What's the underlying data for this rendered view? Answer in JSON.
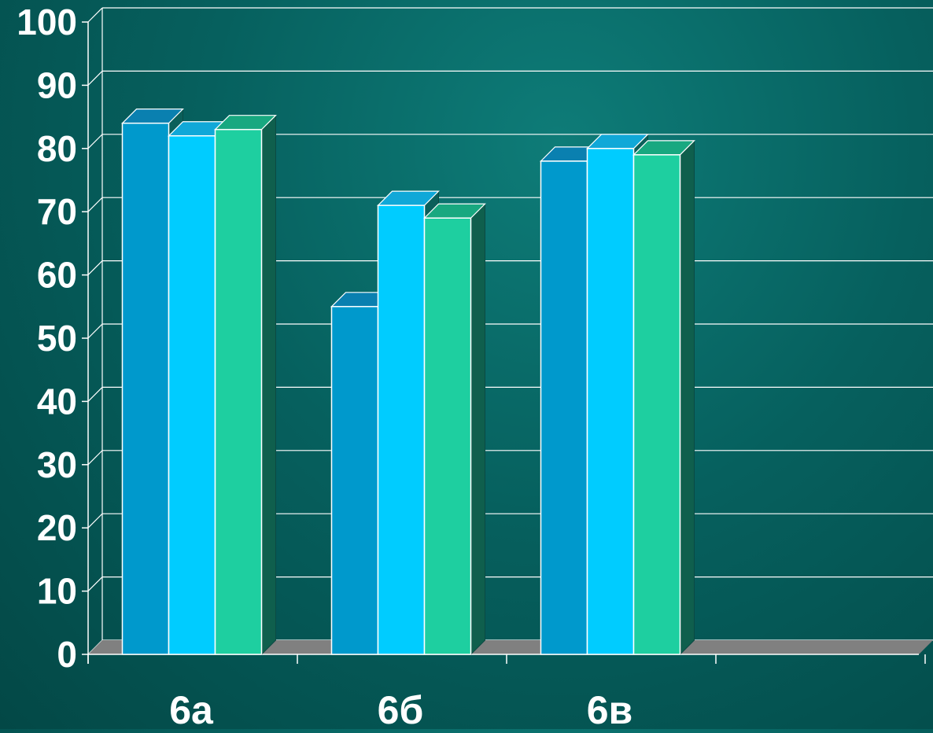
{
  "chart_data": {
    "type": "bar",
    "style": "3d-clustered",
    "categories": [
      "6а",
      "6б",
      "6в"
    ],
    "series": [
      {
        "values": [
          84,
          55,
          78
        ]
      },
      {
        "values": [
          82,
          71,
          80
        ]
      },
      {
        "values": [
          83,
          69,
          79
        ]
      }
    ],
    "ylim": [
      0,
      100
    ],
    "yticks": [
      "0",
      "10",
      "20",
      "30",
      "40",
      "50",
      "60",
      "70",
      "80",
      "90",
      "100"
    ],
    "grid": true,
    "legend": "none"
  },
  "colors": {
    "series_front": [
      "#0099cc",
      "#00ccff",
      "#1ecfa0"
    ],
    "series_top": [
      "#0a80b0",
      "#10a8d8",
      "#18a880"
    ],
    "series_side": [
      "#0b5f5a",
      "#0b5f5a",
      "#0f5f4d"
    ],
    "floor": "#808080",
    "grid": "#ffffff",
    "tick_text": "#ffffff",
    "bar_outline": "#ffffff"
  }
}
